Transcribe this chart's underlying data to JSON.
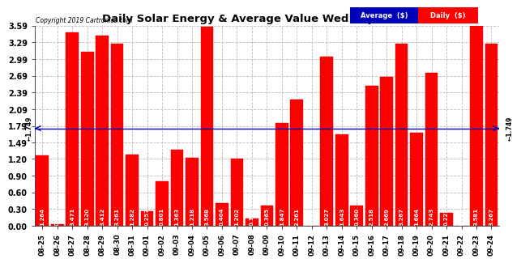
{
  "title": "Daily Solar Energy & Average Value Wed Sep 25 18:38",
  "copyright": "Copyright 2019 Cartronics.com",
  "average_value": 1.749,
  "categories": [
    "08-25",
    "08-26",
    "08-27",
    "08-28",
    "08-29",
    "08-30",
    "08-31",
    "09-01",
    "09-02",
    "09-03",
    "09-04",
    "09-05",
    "09-06",
    "09-07",
    "09-08",
    "09-09",
    "09-10",
    "09-11",
    "09-12",
    "09-13",
    "09-14",
    "09-15",
    "09-16",
    "09-17",
    "09-18",
    "09-19",
    "09-20",
    "09-21",
    "09-22",
    "09-23",
    "09-24"
  ],
  "values": [
    1.264,
    0.03,
    3.471,
    3.12,
    3.412,
    3.261,
    1.282,
    0.257,
    0.801,
    1.363,
    1.218,
    3.568,
    0.404,
    1.202,
    0.128,
    0.365,
    1.847,
    2.261,
    0.0,
    3.027,
    1.643,
    0.36,
    2.518,
    2.669,
    3.267,
    1.664,
    2.743,
    0.227,
    0.008,
    3.581,
    3.267
  ],
  "bar_color": "#ff0000",
  "bar_edge_color": "#cc0000",
  "avg_line_color": "#0000bb",
  "background_color": "#ffffff",
  "plot_bg_color": "#ffffff",
  "grid_color": "#bbbbbb",
  "ylim": [
    0.0,
    3.59
  ],
  "yticks": [
    0.0,
    0.3,
    0.6,
    0.9,
    1.2,
    1.49,
    1.79,
    2.09,
    2.39,
    2.69,
    2.99,
    3.29,
    3.59
  ],
  "legend_avg_bg": "#0000bb",
  "legend_daily_bg": "#ff0000",
  "legend_text_color": "#ffffff"
}
